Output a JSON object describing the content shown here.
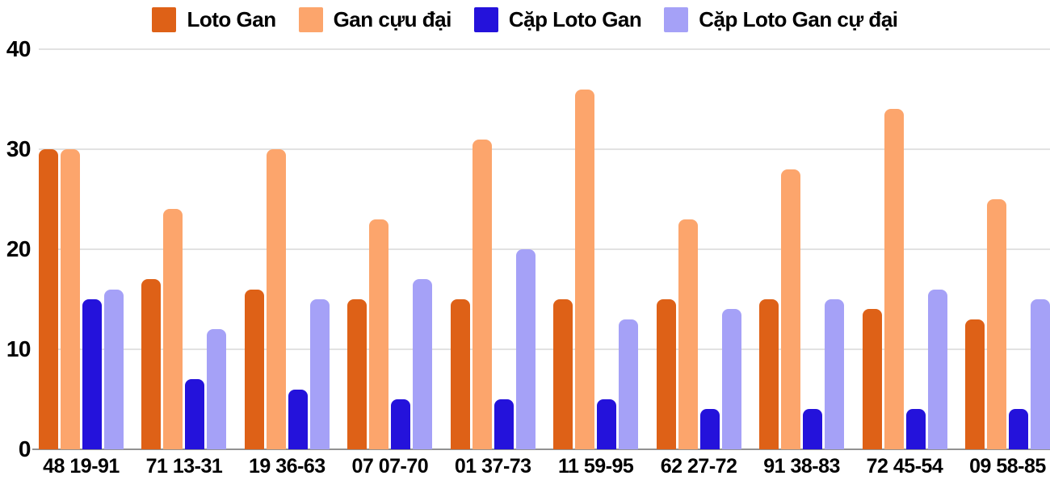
{
  "chart_data": {
    "type": "bar",
    "categories": [
      "48 19-91",
      "71 13-31",
      "19 36-63",
      "07 07-70",
      "01 37-73",
      "11 59-95",
      "62 27-72",
      "91 38-83",
      "72 45-54",
      "09 58-85"
    ],
    "series": [
      {
        "name": "Loto Gan",
        "color": "#DE6117",
        "values": [
          30,
          17,
          16,
          15,
          15,
          15,
          15,
          15,
          14,
          13
        ]
      },
      {
        "name": "Gan cựu đại",
        "color": "#FCA56C",
        "values": [
          30,
          24,
          30,
          23,
          31,
          36,
          23,
          28,
          34,
          25
        ]
      },
      {
        "name": "Cặp Loto Gan",
        "color": "#2412DB",
        "values": [
          15,
          7,
          6,
          5,
          5,
          5,
          4,
          4,
          4,
          4
        ]
      },
      {
        "name": "Cặp Loto Gan cự đại",
        "color": "#A5A1F7",
        "values": [
          16,
          12,
          15,
          17,
          20,
          13,
          14,
          15,
          16,
          15
        ]
      }
    ],
    "ylim": [
      0,
      40
    ],
    "yticks": [
      0,
      10,
      20,
      30,
      40
    ],
    "grid": true,
    "legend_position": "top-center"
  },
  "styles": {
    "grid_color": "#E2E2E2",
    "axis_color": "#919191",
    "label_color": "#000000",
    "background": "#FFFFFF"
  }
}
